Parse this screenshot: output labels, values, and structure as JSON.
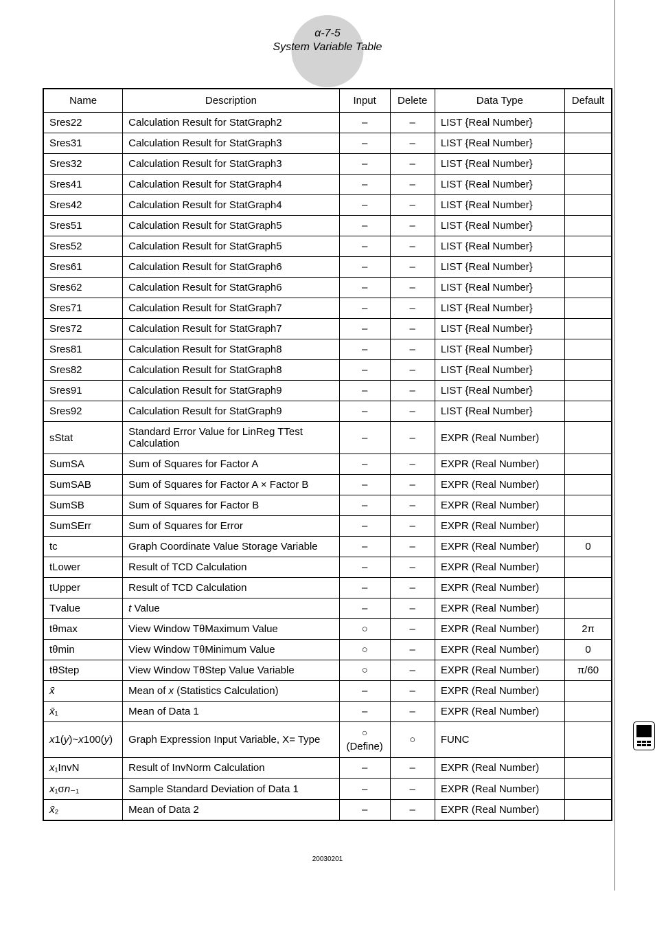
{
  "header": {
    "alpha": "α-7-5",
    "title": "System Variable Table"
  },
  "columns": {
    "name": "Name",
    "description": "Description",
    "input": "Input",
    "delete": "Delete",
    "datatype": "Data Type",
    "default": "Default"
  },
  "rows": [
    {
      "name": "Sres22",
      "desc": "Calculation Result for StatGraph2",
      "input": "–",
      "delete": "–",
      "datatype": "LIST {Real Number}",
      "default": ""
    },
    {
      "name": "Sres31",
      "desc": "Calculation Result for StatGraph3",
      "input": "–",
      "delete": "–",
      "datatype": "LIST {Real Number}",
      "default": ""
    },
    {
      "name": "Sres32",
      "desc": "Calculation Result for StatGraph3",
      "input": "–",
      "delete": "–",
      "datatype": "LIST {Real Number}",
      "default": ""
    },
    {
      "name": "Sres41",
      "desc": "Calculation Result for StatGraph4",
      "input": "–",
      "delete": "–",
      "datatype": "LIST {Real Number}",
      "default": ""
    },
    {
      "name": "Sres42",
      "desc": "Calculation Result for StatGraph4",
      "input": "–",
      "delete": "–",
      "datatype": "LIST {Real Number}",
      "default": ""
    },
    {
      "name": "Sres51",
      "desc": "Calculation Result for StatGraph5",
      "input": "–",
      "delete": "–",
      "datatype": "LIST {Real Number}",
      "default": ""
    },
    {
      "name": "Sres52",
      "desc": "Calculation Result for StatGraph5",
      "input": "–",
      "delete": "–",
      "datatype": "LIST {Real Number}",
      "default": ""
    },
    {
      "name": "Sres61",
      "desc": "Calculation Result for StatGraph6",
      "input": "–",
      "delete": "–",
      "datatype": "LIST {Real Number}",
      "default": ""
    },
    {
      "name": "Sres62",
      "desc": "Calculation Result for StatGraph6",
      "input": "–",
      "delete": "–",
      "datatype": "LIST {Real Number}",
      "default": ""
    },
    {
      "name": "Sres71",
      "desc": "Calculation Result for StatGraph7",
      "input": "–",
      "delete": "–",
      "datatype": "LIST {Real Number}",
      "default": ""
    },
    {
      "name": "Sres72",
      "desc": "Calculation Result for StatGraph7",
      "input": "–",
      "delete": "–",
      "datatype": "LIST {Real Number}",
      "default": ""
    },
    {
      "name": "Sres81",
      "desc": "Calculation Result for StatGraph8",
      "input": "–",
      "delete": "–",
      "datatype": "LIST {Real Number}",
      "default": ""
    },
    {
      "name": "Sres82",
      "desc": "Calculation Result for StatGraph8",
      "input": "–",
      "delete": "–",
      "datatype": "LIST {Real Number}",
      "default": ""
    },
    {
      "name": "Sres91",
      "desc": "Calculation Result for StatGraph9",
      "input": "–",
      "delete": "–",
      "datatype": "LIST {Real Number}",
      "default": ""
    },
    {
      "name": "Sres92",
      "desc": "Calculation Result for StatGraph9",
      "input": "–",
      "delete": "–",
      "datatype": "LIST {Real Number}",
      "default": ""
    },
    {
      "name": "sStat",
      "desc": "Standard Error Value for LinReg TTest Calculation",
      "input": "–",
      "delete": "–",
      "datatype": "EXPR (Real Number)",
      "default": ""
    },
    {
      "name": "SumSA",
      "desc": "Sum of Squares for Factor A",
      "input": "–",
      "delete": "–",
      "datatype": "EXPR (Real Number)",
      "default": ""
    },
    {
      "name": "SumSAB",
      "desc": "Sum of Squares for Factor A × Factor B",
      "input": "–",
      "delete": "–",
      "datatype": "EXPR (Real Number)",
      "default": ""
    },
    {
      "name": "SumSB",
      "desc": "Sum of Squares for Factor B",
      "input": "–",
      "delete": "–",
      "datatype": "EXPR (Real Number)",
      "default": ""
    },
    {
      "name": "SumSErr",
      "desc": "Sum of Squares for Error",
      "input": "–",
      "delete": "–",
      "datatype": "EXPR (Real Number)",
      "default": ""
    },
    {
      "name": "tc",
      "desc": "Graph Coordinate Value Storage Variable",
      "input": "–",
      "delete": "–",
      "datatype": "EXPR (Real Number)",
      "default": "0"
    },
    {
      "name": "tLower",
      "desc": "Result of TCD Calculation",
      "input": "–",
      "delete": "–",
      "datatype": "EXPR (Real Number)",
      "default": ""
    },
    {
      "name": "tUpper",
      "desc": "Result of TCD Calculation",
      "input": "–",
      "delete": "–",
      "datatype": "EXPR (Real Number)",
      "default": ""
    },
    {
      "name": "Tvalue",
      "desc_html": "<span class='italic'>t</span> Value",
      "input": "–",
      "delete": "–",
      "datatype": "EXPR (Real Number)",
      "default": ""
    },
    {
      "name": "tθmax",
      "desc": "View Window TθMaximum Value",
      "input": "○",
      "delete": "–",
      "datatype": "EXPR (Real Number)",
      "default": "2π"
    },
    {
      "name": "tθmin",
      "desc": "View Window TθMinimum Value",
      "input": "○",
      "delete": "–",
      "datatype": "EXPR (Real Number)",
      "default": "0"
    },
    {
      "name": "tθStep",
      "desc": "View Window TθStep Value Variable",
      "input": "○",
      "delete": "–",
      "datatype": "EXPR (Real Number)",
      "default": "π/60"
    },
    {
      "name_html": "<span class='italic'>x̄</span>",
      "desc_html": "Mean of <span class='italic'>x</span> (Statistics Calculation)",
      "input": "–",
      "delete": "–",
      "datatype": "EXPR (Real Number)",
      "default": ""
    },
    {
      "name_html": "<span class='italic'>x̄</span>₁",
      "desc": "Mean of Data 1",
      "input": "–",
      "delete": "–",
      "datatype": "EXPR (Real Number)",
      "default": ""
    },
    {
      "name_html": "<span class='italic'>x</span>1(<span class='italic'>y</span>)~<span class='italic'>x</span>100(<span class='italic'>y</span>)",
      "desc": "Graph Expression Input Variable, X= Type",
      "input_html": "<span class='circ'>○</span><br>(Define)",
      "delete": "○",
      "datatype": "FUNC",
      "default": ""
    },
    {
      "name_html": "<span class='italic'>x</span>₁InvN",
      "desc": "Result of InvNorm Calculation",
      "input": "–",
      "delete": "–",
      "datatype": "EXPR (Real Number)",
      "default": ""
    },
    {
      "name_html": "<span class='italic'>x</span>₁σ<span class='italic'>n</span>₋₁",
      "desc": "Sample Standard Deviation of Data 1",
      "input": "–",
      "delete": "–",
      "datatype": "EXPR (Real Number)",
      "default": ""
    },
    {
      "name_html": "<span class='italic'>x̄</span>₂",
      "desc": "Mean of Data 2",
      "input": "–",
      "delete": "–",
      "datatype": "EXPR (Real Number)",
      "default": ""
    }
  ],
  "footer": {
    "date": "20030201"
  }
}
